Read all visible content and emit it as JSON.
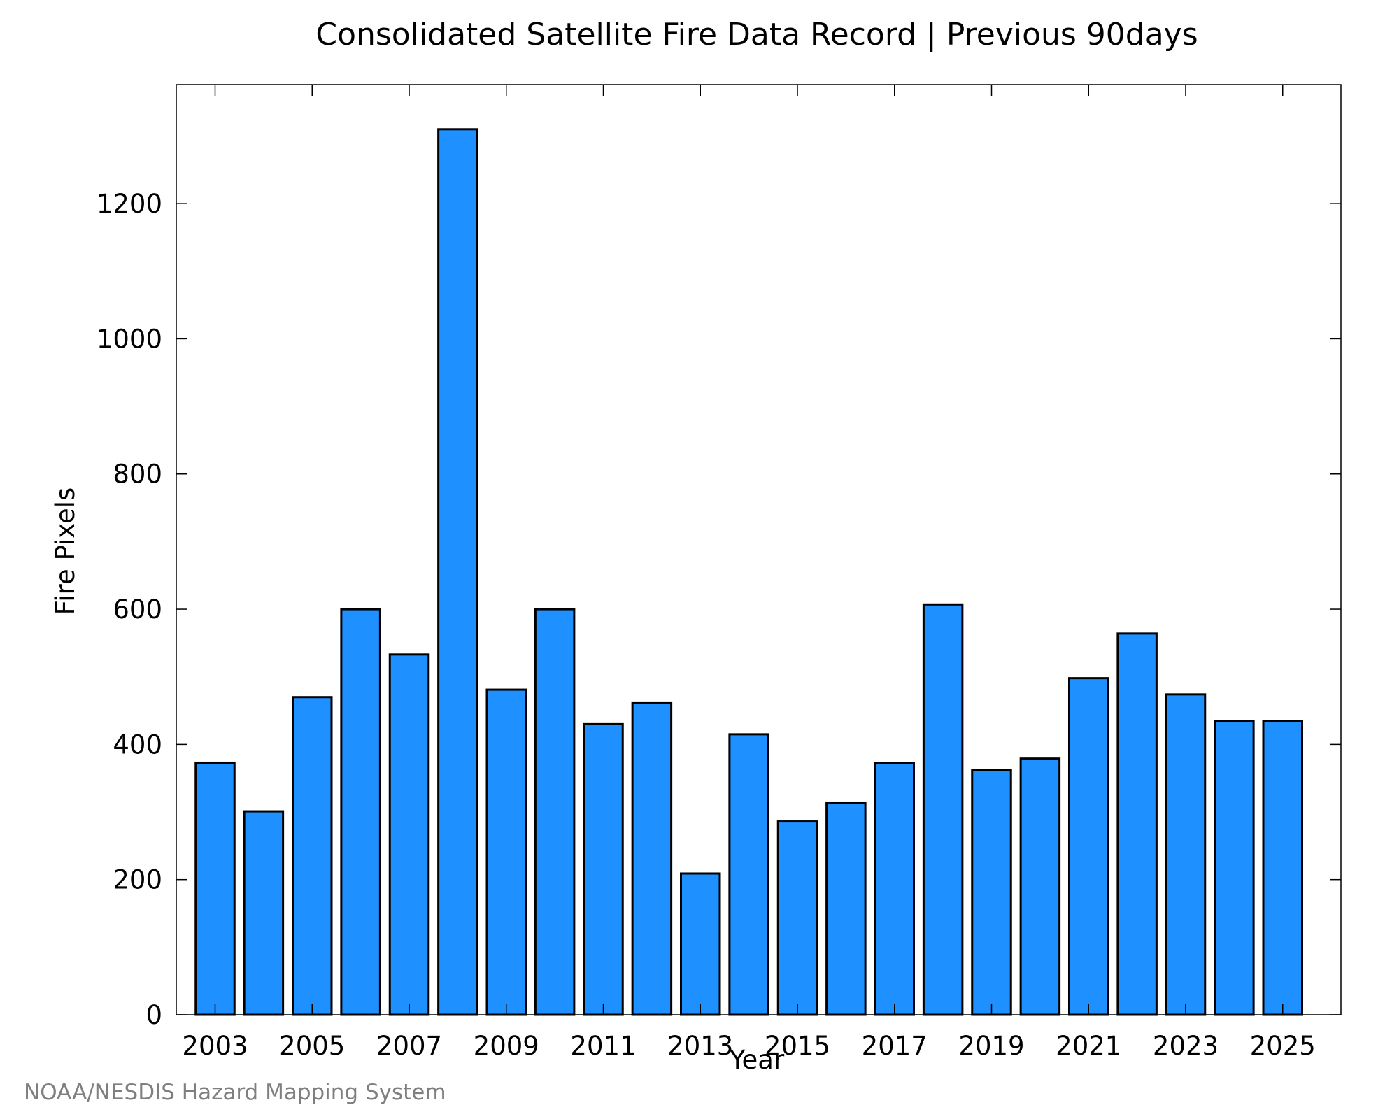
{
  "chart_data": {
    "type": "bar",
    "title": "Consolidated Satellite Fire Data Record | Previous 90days",
    "xlabel": "Year",
    "ylabel": "Fire Pixels",
    "credit": "NOAA/NESDIS Hazard Mapping System",
    "categories": [
      "2003",
      "2004",
      "2005",
      "2006",
      "2007",
      "2008",
      "2009",
      "2010",
      "2011",
      "2012",
      "2013",
      "2014",
      "2015",
      "2016",
      "2017",
      "2018",
      "2019",
      "2020",
      "2021",
      "2022",
      "2023",
      "2024",
      "2025"
    ],
    "values": [
      373,
      301,
      470,
      600,
      533,
      1310,
      481,
      600,
      430,
      461,
      209,
      415,
      286,
      313,
      372,
      607,
      362,
      379,
      498,
      564,
      474,
      434,
      435
    ],
    "x_tick_labels": [
      "2003",
      "2005",
      "2007",
      "2009",
      "2011",
      "2013",
      "2015",
      "2017",
      "2019",
      "2021",
      "2023",
      "2025"
    ],
    "y_ticks": [
      0,
      200,
      400,
      600,
      800,
      1000,
      1200
    ],
    "y_tick_labels": [
      "0",
      "200",
      "400",
      "600",
      "800",
      "1000",
      "1200"
    ],
    "ylim": [
      0,
      1376
    ],
    "xlim": [
      2002.2,
      2026.2
    ],
    "grid": false,
    "legend": "none",
    "bar_color": "#1e90ff",
    "edge_color": "#000000"
  }
}
